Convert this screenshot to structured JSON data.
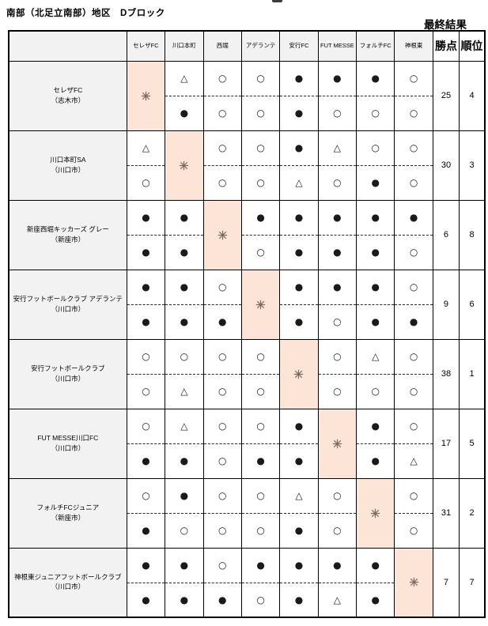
{
  "page": {
    "title": "南部（北足立南部）地区　Dブロック",
    "final_result_label": "最終結果"
  },
  "colors": {
    "diagonal_cell_bg": "#fce4d6",
    "header_bg": "#f2f2f2",
    "border": "#000000"
  },
  "symbols": {
    "win": "○",
    "loss": "●",
    "draw": "△",
    "self": "※"
  },
  "table": {
    "opponents": [
      "セレザFC",
      "川口本町",
      "西堀",
      "アデランテ",
      "安行FC",
      "FUT MESSE",
      "フォルチFC",
      "神根東"
    ],
    "points_header": "勝点",
    "rank_header": "順位",
    "rows": [
      {
        "name": "セレザFC",
        "city": "（志木市）",
        "self": 0,
        "matches": [
          null,
          [
            "△",
            "●"
          ],
          [
            "○",
            "○"
          ],
          [
            "○",
            "○"
          ],
          [
            "●",
            "●"
          ],
          [
            "●",
            "○"
          ],
          [
            "●",
            "○"
          ],
          [
            "○",
            "○"
          ]
        ],
        "points": "25",
        "rank": "4"
      },
      {
        "name": "川口本町SA",
        "city": "（川口市）",
        "self": 1,
        "matches": [
          [
            "△",
            "○"
          ],
          null,
          [
            "○",
            "○"
          ],
          [
            "○",
            "○"
          ],
          [
            "●",
            "△"
          ],
          [
            "△",
            "○"
          ],
          [
            "○",
            "●"
          ],
          [
            "○",
            "○"
          ]
        ],
        "points": "30",
        "rank": "3"
      },
      {
        "name": "新座西堀キッカーズ グレー",
        "city": "（新座市）",
        "self": 2,
        "matches": [
          [
            "●",
            "●"
          ],
          [
            "●",
            "●"
          ],
          null,
          [
            "●",
            "○"
          ],
          [
            "●",
            "●"
          ],
          [
            "●",
            "●"
          ],
          [
            "●",
            "●"
          ],
          [
            "●",
            "○"
          ]
        ],
        "points": "6",
        "rank": "8"
      },
      {
        "name": "安行フットボールクラブ アデランテ",
        "city": "（川口市）",
        "self": 3,
        "matches": [
          [
            "●",
            "●"
          ],
          [
            "●",
            "●"
          ],
          [
            "○",
            "●"
          ],
          null,
          [
            "●",
            "●"
          ],
          [
            "●",
            "○"
          ],
          [
            "●",
            "●"
          ],
          [
            "○",
            "●"
          ]
        ],
        "points": "9",
        "rank": "6"
      },
      {
        "name": "安行フットボールクラブ",
        "city": "（川口市）",
        "self": 4,
        "matches": [
          [
            "○",
            "○"
          ],
          [
            "○",
            "△"
          ],
          [
            "○",
            "○"
          ],
          [
            "○",
            "○"
          ],
          null,
          [
            "○",
            "○"
          ],
          [
            "△",
            "○"
          ],
          [
            "○",
            "○"
          ]
        ],
        "points": "38",
        "rank": "1"
      },
      {
        "name": "FUT MESSE川口FC",
        "city": "（川口市）",
        "self": 5,
        "matches": [
          [
            "○",
            "●"
          ],
          [
            "△",
            "●"
          ],
          [
            "○",
            "○"
          ],
          [
            "○",
            "●"
          ],
          [
            "●",
            "●"
          ],
          null,
          [
            "●",
            "●"
          ],
          [
            "○",
            "△"
          ]
        ],
        "points": "17",
        "rank": "5"
      },
      {
        "name": "フォルチFCジュニア",
        "city": "（新座市）",
        "self": 6,
        "matches": [
          [
            "○",
            "●"
          ],
          [
            "●",
            "○"
          ],
          [
            "○",
            "○"
          ],
          [
            "○",
            "○"
          ],
          [
            "△",
            "●"
          ],
          [
            "○",
            "○"
          ],
          null,
          [
            "○",
            "○"
          ]
        ],
        "points": "31",
        "rank": "2"
      },
      {
        "name": "神根東ジュニアフットボールクラブ",
        "city": "（川口市）",
        "self": 7,
        "matches": [
          [
            "●",
            "●"
          ],
          [
            "●",
            "●"
          ],
          [
            "○",
            "●"
          ],
          [
            "●",
            "○"
          ],
          [
            "●",
            "●"
          ],
          [
            "●",
            "△"
          ],
          [
            "●",
            "●"
          ],
          null
        ],
        "points": "7",
        "rank": "7"
      }
    ]
  }
}
